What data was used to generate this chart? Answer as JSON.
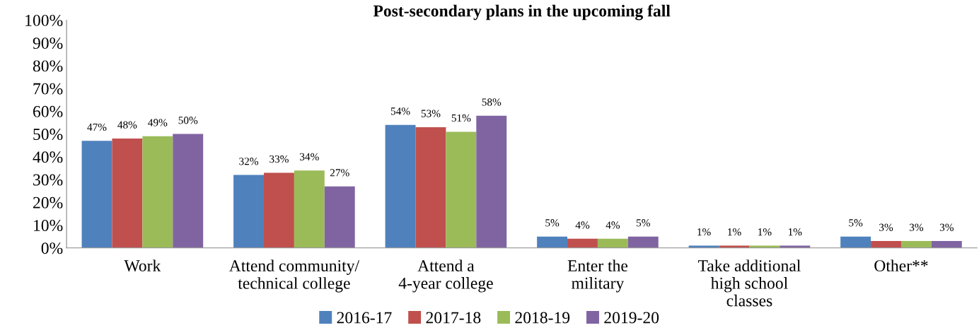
{
  "chart_data": {
    "type": "bar",
    "title": "Post-secondary plans in the upcoming fall",
    "categories": [
      "Work",
      "Attend community/\ntechnical college",
      "Attend a\n4-year college",
      "Enter the\nmilitary",
      "Take additional\nhigh school\nclasses",
      "Other**"
    ],
    "series": [
      {
        "name": "2016-17",
        "color": "#4f81bd",
        "values": [
          47,
          32,
          54,
          5,
          1,
          5
        ],
        "value_labels": [
          "47%",
          "32%",
          "54%",
          "5%",
          "1%",
          "5%"
        ]
      },
      {
        "name": "2017-18",
        "color": "#c0504d",
        "values": [
          48,
          33,
          53,
          4,
          1,
          3
        ],
        "value_labels": [
          "48%",
          "33%",
          "53%",
          "4%",
          "1%",
          "3%"
        ]
      },
      {
        "name": "2018-19",
        "color": "#9bbb59",
        "values": [
          49,
          34,
          51,
          4,
          1,
          3
        ],
        "value_labels": [
          "49%",
          "34%",
          "51%",
          "4%",
          "1%",
          "3%"
        ]
      },
      {
        "name": "2019-20",
        "color": "#8064a2",
        "values": [
          50,
          27,
          58,
          5,
          1,
          3
        ],
        "value_labels": [
          "50%",
          "27%",
          "58%",
          "5%",
          "1%",
          "3%"
        ]
      }
    ],
    "ylim": [
      0,
      100
    ],
    "yticks": [
      {
        "value": 0,
        "label": "0%"
      },
      {
        "value": 10,
        "label": "10%"
      },
      {
        "value": 20,
        "label": "20%"
      },
      {
        "value": 30,
        "label": "30%"
      },
      {
        "value": 40,
        "label": "40%"
      },
      {
        "value": 50,
        "label": "50%"
      },
      {
        "value": 60,
        "label": "60%"
      },
      {
        "value": 70,
        "label": "70%"
      },
      {
        "value": 80,
        "label": "80%"
      },
      {
        "value": 90,
        "label": "90%"
      },
      {
        "value": 100,
        "label": "100%"
      }
    ],
    "grid": false,
    "legend": "bottom"
  }
}
